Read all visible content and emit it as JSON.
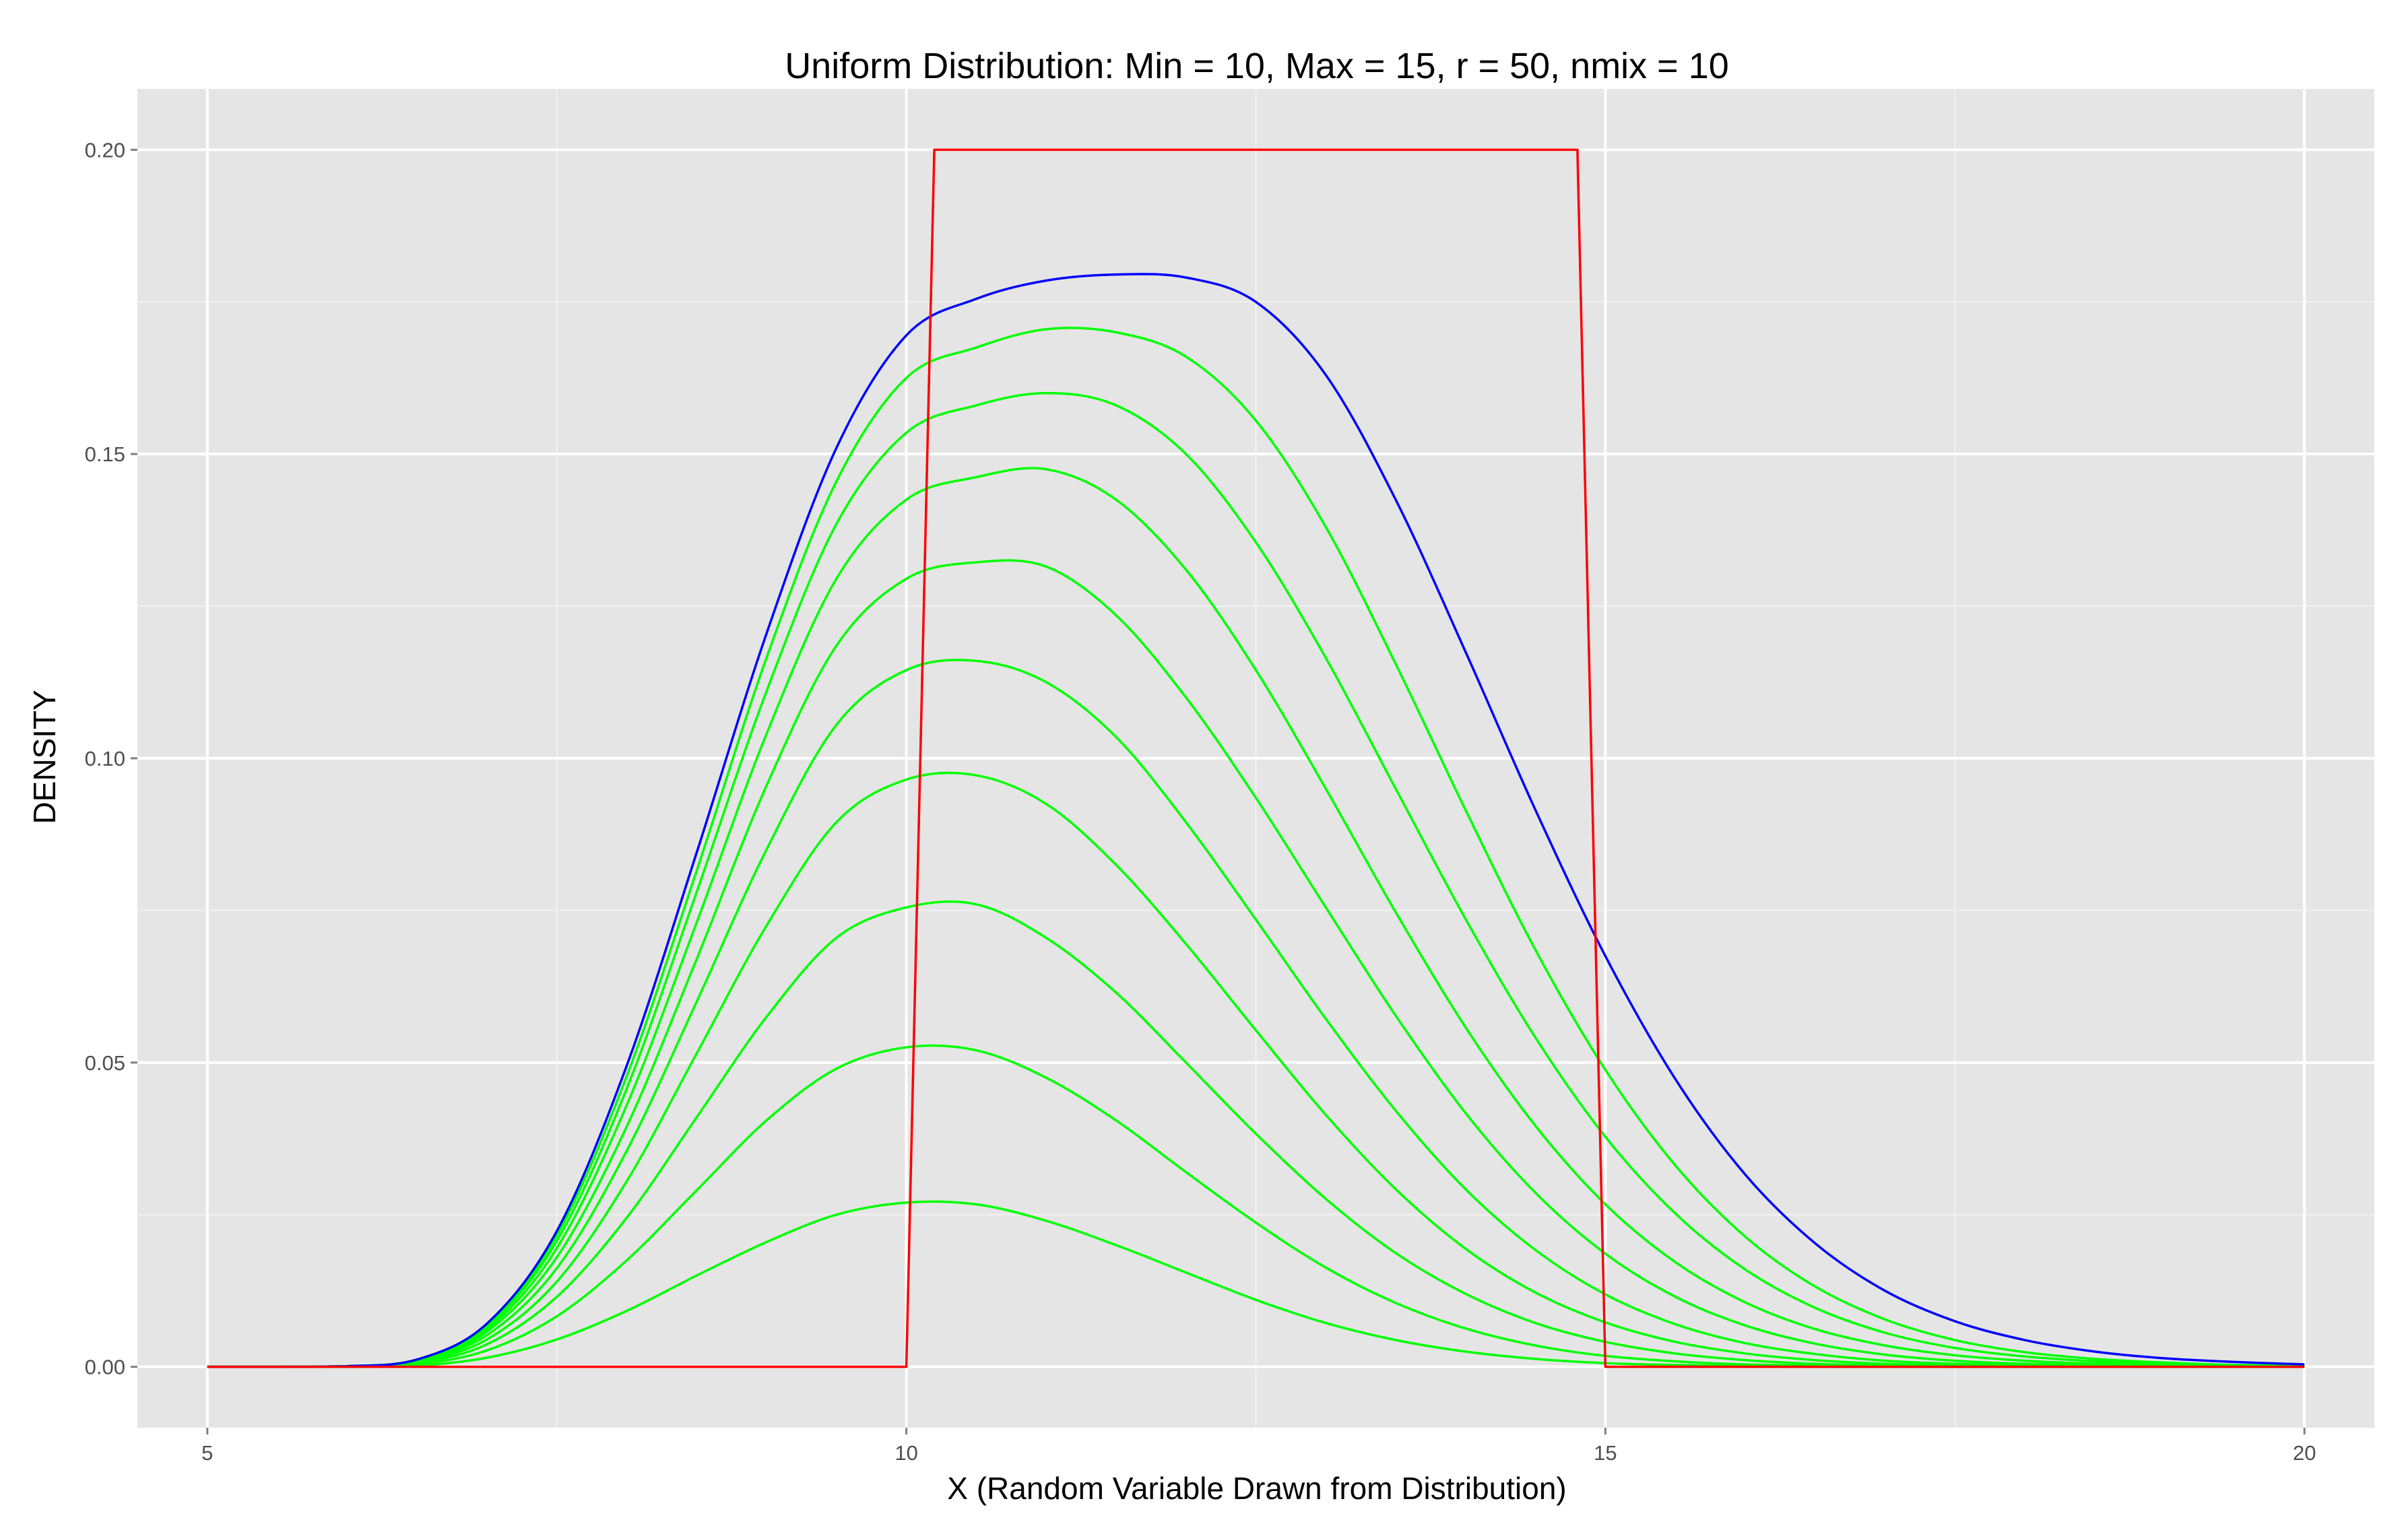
{
  "chart_data": {
    "type": "line",
    "title": "Uniform Distribution: Min = 10, Max = 15, r = 50, nmix = 10",
    "xlabel": "X (Random Variable Drawn from Distribution)",
    "ylabel": "DENSITY",
    "xlim": [
      4.5,
      20.5
    ],
    "ylim": [
      -0.01,
      0.21
    ],
    "x_ticks": [
      5,
      10,
      15,
      20
    ],
    "x_tick_labels": [
      "5",
      "10",
      "15",
      "20"
    ],
    "y_ticks": [
      0,
      0.05,
      0.1,
      0.15,
      0.2
    ],
    "y_tick_labels": [
      "0.00",
      "0.05",
      "0.10",
      "0.15",
      "0.20"
    ],
    "grid": true,
    "background": "#e5e5e5",
    "gridline_color": "#ffffff",
    "x": [
      5,
      5.5,
      6,
      6.5,
      7,
      7.5,
      8,
      8.5,
      9,
      9.5,
      10,
      10.5,
      11,
      11.5,
      12,
      12.5,
      13,
      13.5,
      14,
      14.5,
      15,
      15.5,
      16,
      16.5,
      17,
      17.5,
      18,
      18.5,
      19,
      19.5,
      20
    ],
    "series": [
      {
        "color": "#00ff00",
        "values": [
          0,
          0,
          0,
          0.0002,
          0.0015,
          0.0045,
          0.0092,
          0.015,
          0.0205,
          0.025,
          0.027,
          0.0267,
          0.024,
          0.02,
          0.0155,
          0.011,
          0.0072,
          0.0044,
          0.0025,
          0.0013,
          0.0006,
          0.0003,
          0.0001,
          0,
          0,
          0,
          0,
          0,
          0,
          0,
          0
        ]
      },
      {
        "color": "#00ff00",
        "values": [
          0,
          0,
          0,
          0.0004,
          0.0027,
          0.0083,
          0.0175,
          0.029,
          0.0405,
          0.049,
          0.0525,
          0.052,
          0.0475,
          0.0405,
          0.032,
          0.0237,
          0.0163,
          0.0105,
          0.0063,
          0.0035,
          0.0018,
          0.0009,
          0.0004,
          0.0002,
          0.0001,
          0,
          0,
          0,
          0,
          0,
          0
        ]
      },
      {
        "color": "#00ff00",
        "values": [
          0,
          0,
          0.0001,
          0.0006,
          0.0037,
          0.0115,
          0.0245,
          0.041,
          0.0575,
          0.0705,
          0.0755,
          0.076,
          0.0705,
          0.0615,
          0.05,
          0.0383,
          0.0276,
          0.0187,
          0.012,
          0.0072,
          0.0041,
          0.0022,
          0.0011,
          0.0005,
          0.0002,
          0.0001,
          0,
          0,
          0,
          0,
          0
        ]
      },
      {
        "color": "#00ff00",
        "values": [
          0,
          0,
          0.0001,
          0.0008,
          0.0045,
          0.014,
          0.0305,
          0.0515,
          0.0725,
          0.0895,
          0.0965,
          0.0972,
          0.0925,
          0.0825,
          0.0695,
          0.0553,
          0.0414,
          0.0292,
          0.0194,
          0.0122,
          0.0073,
          0.0041,
          0.0022,
          0.0011,
          0.0005,
          0.0002,
          0.0001,
          0,
          0,
          0,
          0
        ]
      },
      {
        "color": "#00ff00",
        "values": [
          0,
          0,
          0.0001,
          0.0009,
          0.0052,
          0.0162,
          0.0355,
          0.06,
          0.085,
          0.1055,
          0.1145,
          0.116,
          0.1125,
          0.1035,
          0.0895,
          0.0735,
          0.0572,
          0.0421,
          0.0292,
          0.0192,
          0.0119,
          0.007,
          0.0039,
          0.0021,
          0.001,
          0.0005,
          0.0002,
          0.0001,
          0,
          0,
          0
        ]
      },
      {
        "color": "#00ff00",
        "values": [
          0,
          0,
          0.0001,
          0.001,
          0.0058,
          0.018,
          0.0395,
          0.067,
          0.0955,
          0.1185,
          0.1295,
          0.1322,
          0.1315,
          0.1235,
          0.11,
          0.0935,
          0.0755,
          0.0577,
          0.0417,
          0.0286,
          0.0186,
          0.0115,
          0.0068,
          0.0038,
          0.002,
          0.001,
          0.0005,
          0.0002,
          0.0001,
          0,
          0
        ]
      },
      {
        "color": "#00ff00",
        "values": [
          0,
          0,
          0.0001,
          0.0011,
          0.0062,
          0.0195,
          0.043,
          0.073,
          0.104,
          0.1295,
          0.1425,
          0.1462,
          0.1475,
          0.1425,
          0.131,
          0.1145,
          0.095,
          0.0747,
          0.0558,
          0.0396,
          0.0267,
          0.0172,
          0.0106,
          0.0062,
          0.0035,
          0.0019,
          0.001,
          0.0005,
          0.0002,
          0.0001,
          0
        ]
      },
      {
        "color": "#00ff00",
        "values": [
          0,
          0,
          0.0001,
          0.0011,
          0.0066,
          0.0207,
          0.0457,
          0.078,
          0.111,
          0.1385,
          0.1535,
          0.158,
          0.16,
          0.158,
          0.15,
          0.1355,
          0.1165,
          0.095,
          0.0736,
          0.0541,
          0.0378,
          0.0252,
          0.016,
          0.0097,
          0.0056,
          0.0031,
          0.0017,
          0.0009,
          0.0004,
          0.0002,
          0.0001
        ]
      },
      {
        "color": "#00ff00",
        "values": [
          0,
          0,
          0.0001,
          0.0012,
          0.0069,
          0.0216,
          0.0478,
          0.0815,
          0.1165,
          0.1455,
          0.1625,
          0.1675,
          0.1705,
          0.17,
          0.166,
          0.1555,
          0.138,
          0.1155,
          0.0915,
          0.0685,
          0.0488,
          0.0331,
          0.0214,
          0.0132,
          0.0078,
          0.0044,
          0.0024,
          0.0013,
          0.0007,
          0.0003,
          0.0002
        ]
      },
      {
        "color": "#0000ff",
        "values": [
          0,
          0,
          0.0001,
          0.0012,
          0.0071,
          0.0223,
          0.0495,
          0.0845,
          0.1205,
          0.151,
          0.1695,
          0.1755,
          0.1785,
          0.1795,
          0.179,
          0.175,
          0.163,
          0.1425,
          0.1175,
          0.0915,
          0.0675,
          0.0473,
          0.0316,
          0.0203,
          0.0125,
          0.0075,
          0.0044,
          0.0025,
          0.0014,
          0.0008,
          0.0004
        ]
      },
      {
        "color": "#ff0000",
        "x": [
          5,
          10,
          10.2,
          14.8,
          15,
          20
        ],
        "values": [
          0,
          0,
          0.2,
          0.2,
          0,
          0
        ]
      }
    ]
  }
}
